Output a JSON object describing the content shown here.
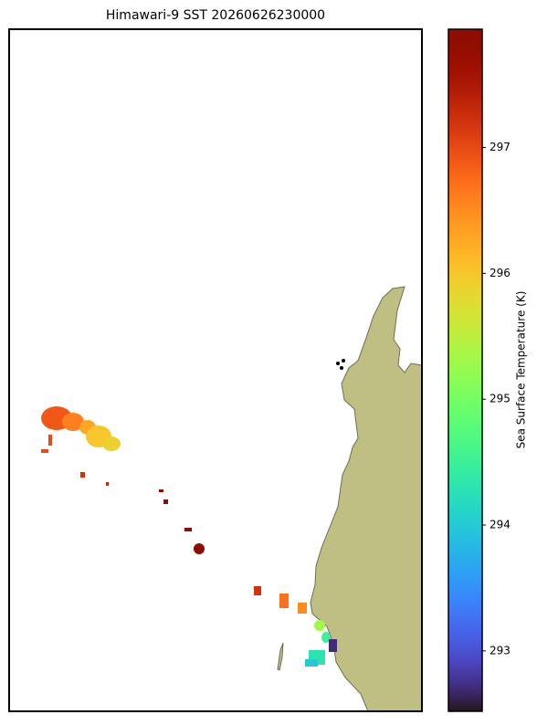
{
  "chart_data": {
    "type": "heatmap",
    "title": "Himawari-9 SST 20260626230000",
    "colorbar_label": "Sea Surface Temperature (K)",
    "colormap": "turbo",
    "clim": [
      292.52,
      297.94
    ],
    "cticks": [
      293,
      294,
      295,
      296,
      297
    ],
    "values": [
      296.9,
      296.6,
      296.3,
      296.0,
      295.9,
      297.0,
      297.0,
      297.2,
      297.3,
      297.9,
      297.9,
      297.8,
      297.9,
      297.2,
      296.7,
      296.5,
      295.3,
      294.5,
      292.7,
      294.3,
      294.0
    ]
  }
}
